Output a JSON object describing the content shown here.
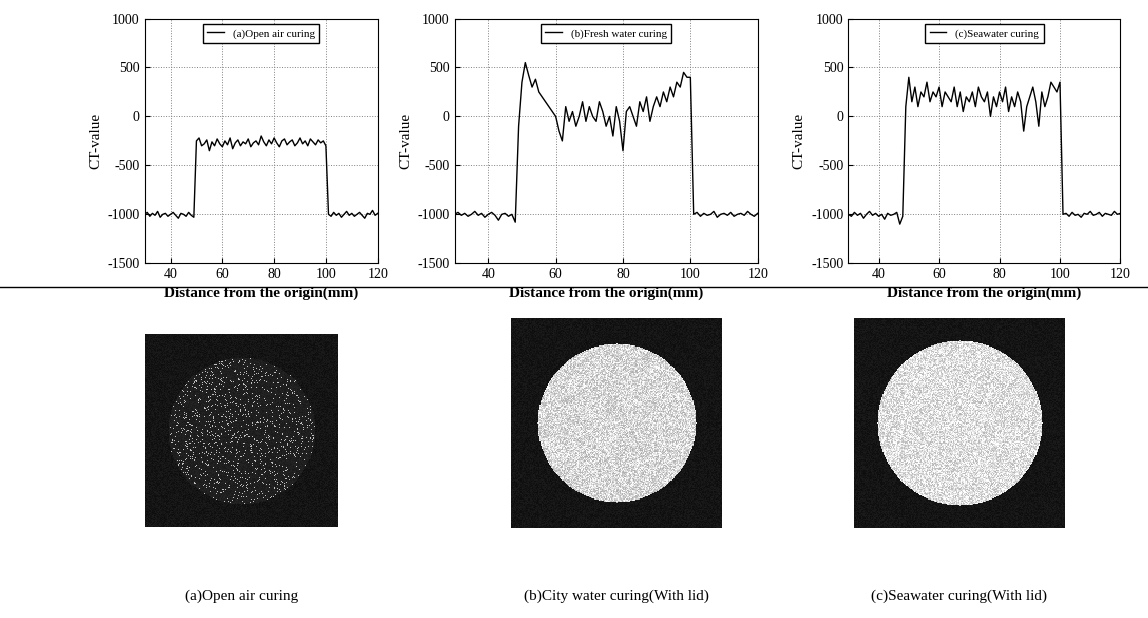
{
  "chart_data": [
    {
      "type": "line",
      "xlabel": "Distance from the origin(mm)",
      "ylabel": "CT-value",
      "xlim": [
        30,
        120
      ],
      "xticks": [
        40,
        60,
        80,
        100,
        120
      ],
      "ylim": [
        -1500,
        1000
      ],
      "yticks": [
        -1500,
        -1000,
        -500,
        0,
        500,
        1000
      ],
      "grid": true,
      "legend": "upper center",
      "x": [
        30,
        31,
        32,
        33,
        34,
        35,
        36,
        37,
        38,
        39,
        40,
        41,
        42,
        43,
        44,
        45,
        46,
        47,
        48,
        49,
        50,
        51,
        52,
        53,
        54,
        55,
        56,
        57,
        58,
        59,
        60,
        61,
        62,
        63,
        64,
        65,
        66,
        67,
        68,
        69,
        70,
        71,
        72,
        73,
        74,
        75,
        76,
        77,
        78,
        79,
        80,
        81,
        82,
        83,
        84,
        85,
        86,
        87,
        88,
        89,
        90,
        91,
        92,
        93,
        94,
        95,
        96,
        97,
        98,
        99,
        100,
        101,
        102,
        103,
        104,
        105,
        106,
        107,
        108,
        109,
        110,
        111,
        112,
        113,
        114,
        115,
        116,
        117,
        118,
        119,
        120
      ],
      "series": [
        {
          "name": "(a)Open air curing",
          "color": "#000000",
          "values": [
            -1000,
            -980,
            -1020,
            -990,
            -1010,
            -970,
            -1030,
            -1000,
            -990,
            -1020,
            -1000,
            -980,
            -1010,
            -1040,
            -990,
            -1000,
            -1020,
            -980,
            -1010,
            -1030,
            -250,
            -220,
            -300,
            -280,
            -240,
            -350,
            -260,
            -300,
            -230,
            -280,
            -310,
            -250,
            -290,
            -220,
            -330,
            -270,
            -240,
            -300,
            -260,
            -280,
            -230,
            -310,
            -270,
            -250,
            -290,
            -200,
            -260,
            -300,
            -240,
            -280,
            -220,
            -270,
            -310,
            -250,
            -230,
            -290,
            -260,
            -240,
            -300,
            -270,
            -220,
            -280,
            -250,
            -300,
            -230,
            -260,
            -290,
            -240,
            -270,
            -250,
            -300,
            -1000,
            -1020,
            -980,
            -1010,
            -990,
            -1030,
            -1000,
            -970,
            -1010,
            -990,
            -1020,
            -1000,
            -980,
            -1010,
            -1040,
            -990,
            -1000,
            -960,
            -1010,
            -990
          ]
        }
      ]
    },
    {
      "type": "line",
      "xlabel": "Distance from the origin(mm)",
      "ylabel": "CT-value",
      "xlim": [
        30,
        120
      ],
      "xticks": [
        40,
        60,
        80,
        100,
        120
      ],
      "ylim": [
        -1500,
        1000
      ],
      "yticks": [
        -1500,
        -1000,
        -500,
        0,
        500,
        1000
      ],
      "grid": true,
      "legend": "upper center",
      "x": [
        30,
        31,
        32,
        33,
        34,
        35,
        36,
        37,
        38,
        39,
        40,
        41,
        42,
        43,
        44,
        45,
        46,
        47,
        48,
        49,
        50,
        51,
        52,
        53,
        54,
        55,
        56,
        57,
        58,
        59,
        60,
        61,
        62,
        63,
        64,
        65,
        66,
        67,
        68,
        69,
        70,
        71,
        72,
        73,
        74,
        75,
        76,
        77,
        78,
        79,
        80,
        81,
        82,
        83,
        84,
        85,
        86,
        87,
        88,
        89,
        90,
        91,
        92,
        93,
        94,
        95,
        96,
        97,
        98,
        99,
        100,
        101,
        102,
        103,
        104,
        105,
        106,
        107,
        108,
        109,
        110,
        111,
        112,
        113,
        114,
        115,
        116,
        117,
        118,
        119,
        120
      ],
      "series": [
        {
          "name": "(b)Fresh water curing",
          "color": "#000000",
          "values": [
            -1000,
            -980,
            -1010,
            -990,
            -1020,
            -1000,
            -970,
            -1010,
            -990,
            -1030,
            -1000,
            -980,
            -1010,
            -1060,
            -1000,
            -990,
            -1020,
            -1000,
            -1080,
            -100,
            350,
            550,
            420,
            300,
            380,
            250,
            200,
            150,
            100,
            50,
            0,
            -150,
            -250,
            100,
            -50,
            50,
            -100,
            0,
            150,
            -50,
            100,
            0,
            -50,
            150,
            50,
            -100,
            0,
            -200,
            100,
            -50,
            -350,
            50,
            100,
            0,
            -100,
            150,
            50,
            200,
            -50,
            100,
            200,
            100,
            250,
            150,
            300,
            200,
            350,
            300,
            450,
            400,
            400,
            -1000,
            -980,
            -1020,
            -990,
            -1010,
            -1000,
            -970,
            -1030,
            -1000,
            -990,
            -1010,
            -980,
            -1020,
            -1000,
            -990,
            -1010,
            -970,
            -1000,
            -1020,
            -990
          ]
        }
      ]
    },
    {
      "type": "line",
      "xlabel": "Distance from the origin(mm)",
      "ylabel": "CT-value",
      "xlim": [
        30,
        120
      ],
      "xticks": [
        40,
        60,
        80,
        100,
        120
      ],
      "ylim": [
        -1500,
        1000
      ],
      "yticks": [
        -1500,
        -1000,
        -500,
        0,
        500,
        1000
      ],
      "grid": true,
      "legend": "upper center",
      "x": [
        30,
        31,
        32,
        33,
        34,
        35,
        36,
        37,
        38,
        39,
        40,
        41,
        42,
        43,
        44,
        45,
        46,
        47,
        48,
        49,
        50,
        51,
        52,
        53,
        54,
        55,
        56,
        57,
        58,
        59,
        60,
        61,
        62,
        63,
        64,
        65,
        66,
        67,
        68,
        69,
        70,
        71,
        72,
        73,
        74,
        75,
        76,
        77,
        78,
        79,
        80,
        81,
        82,
        83,
        84,
        85,
        86,
        87,
        88,
        89,
        90,
        91,
        92,
        93,
        94,
        95,
        96,
        97,
        98,
        99,
        100,
        101,
        102,
        103,
        104,
        105,
        106,
        107,
        108,
        109,
        110,
        111,
        112,
        113,
        114,
        115,
        116,
        117,
        118,
        119,
        120
      ],
      "series": [
        {
          "name": "(c)Seawater curing",
          "color": "#000000",
          "values": [
            -1000,
            -1020,
            -980,
            -1010,
            -990,
            -1040,
            -1000,
            -970,
            -1010,
            -990,
            -1020,
            -1000,
            -1050,
            -990,
            -1010,
            -1000,
            -980,
            -1100,
            -1020,
            100,
            400,
            150,
            300,
            100,
            250,
            200,
            350,
            150,
            250,
            200,
            300,
            100,
            250,
            200,
            150,
            300,
            100,
            250,
            50,
            200,
            150,
            250,
            100,
            300,
            200,
            150,
            250,
            0,
            200,
            100,
            250,
            150,
            300,
            50,
            200,
            100,
            250,
            150,
            -150,
            100,
            200,
            300,
            150,
            -100,
            250,
            100,
            200,
            350,
            300,
            250,
            350,
            -1000,
            -990,
            -1020,
            -980,
            -1010,
            -1000,
            -1030,
            -990,
            -1000,
            -970,
            -1010,
            -1000,
            -980,
            -1020,
            -990,
            -1000,
            -1010,
            -970,
            -1000,
            -990
          ]
        }
      ]
    }
  ],
  "images": [
    {
      "caption": "(a)Open air curing"
    },
    {
      "caption": "(b)City water curing(With lid)"
    },
    {
      "caption": "(c)Seawater curing(With lid)"
    }
  ]
}
